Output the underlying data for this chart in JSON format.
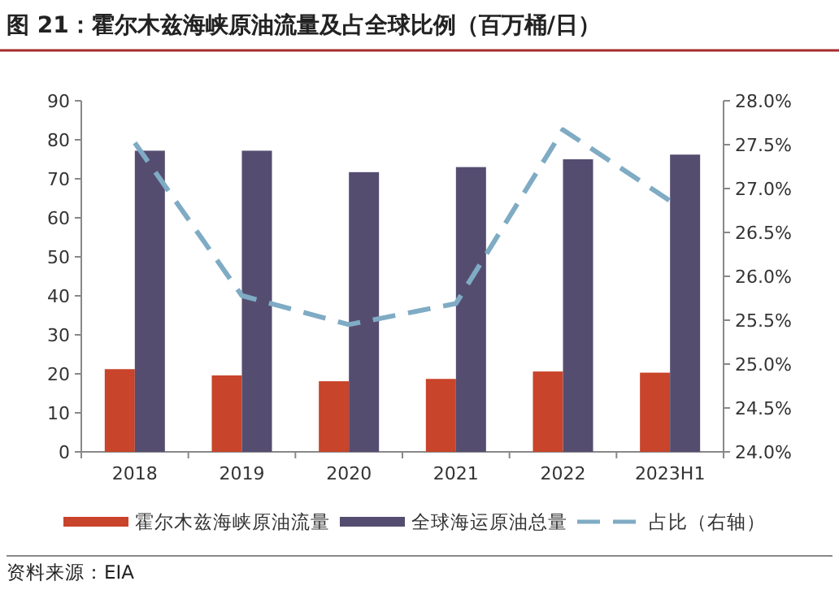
{
  "chart_data": {
    "type": "bar",
    "title": "图 21：霍尔木兹海峡原油流量及占全球比例（百万桶/日）",
    "categories": [
      "2018",
      "2019",
      "2020",
      "2021",
      "2022",
      "2023H1"
    ],
    "series": [
      {
        "name": "霍尔木兹海峡原油流量",
        "color": "#c8442a",
        "values": [
          21.2,
          19.6,
          18.1,
          18.7,
          20.6,
          20.3
        ]
      },
      {
        "name": "全球海运原油总量",
        "color": "#554d70",
        "values": [
          77.2,
          77.2,
          71.7,
          73.0,
          75.0,
          76.2
        ]
      },
      {
        "name": "占比（右轴）",
        "type": "line",
        "axis": "y2",
        "color": "#7fabc4",
        "line_style": "dashed",
        "marker": "none",
        "values": [
          27.52,
          25.78,
          25.45,
          25.69,
          27.67,
          26.86
        ]
      }
    ],
    "ylim": [
      0,
      90
    ],
    "yticks": [
      0,
      10,
      20,
      30,
      40,
      50,
      60,
      70,
      80,
      90
    ],
    "y2lim": [
      24,
      28
    ],
    "y2ticks": [
      {
        "value": 24,
        "label": "24.0%"
      },
      {
        "value": 24.5,
        "label": "24.5%"
      },
      {
        "value": 25,
        "label": "25.0%"
      },
      {
        "value": 25.5,
        "label": "25.5%"
      },
      {
        "value": 26,
        "label": "26.0%"
      },
      {
        "value": 26.5,
        "label": "26.5%"
      },
      {
        "value": 27,
        "label": "27.0%"
      },
      {
        "value": 27.5,
        "label": "27.5%"
      },
      {
        "value": 28,
        "label": "28.0%"
      }
    ],
    "legend": "bottom",
    "grid": false,
    "annotations": [
      "资料来源：EIA"
    ]
  }
}
